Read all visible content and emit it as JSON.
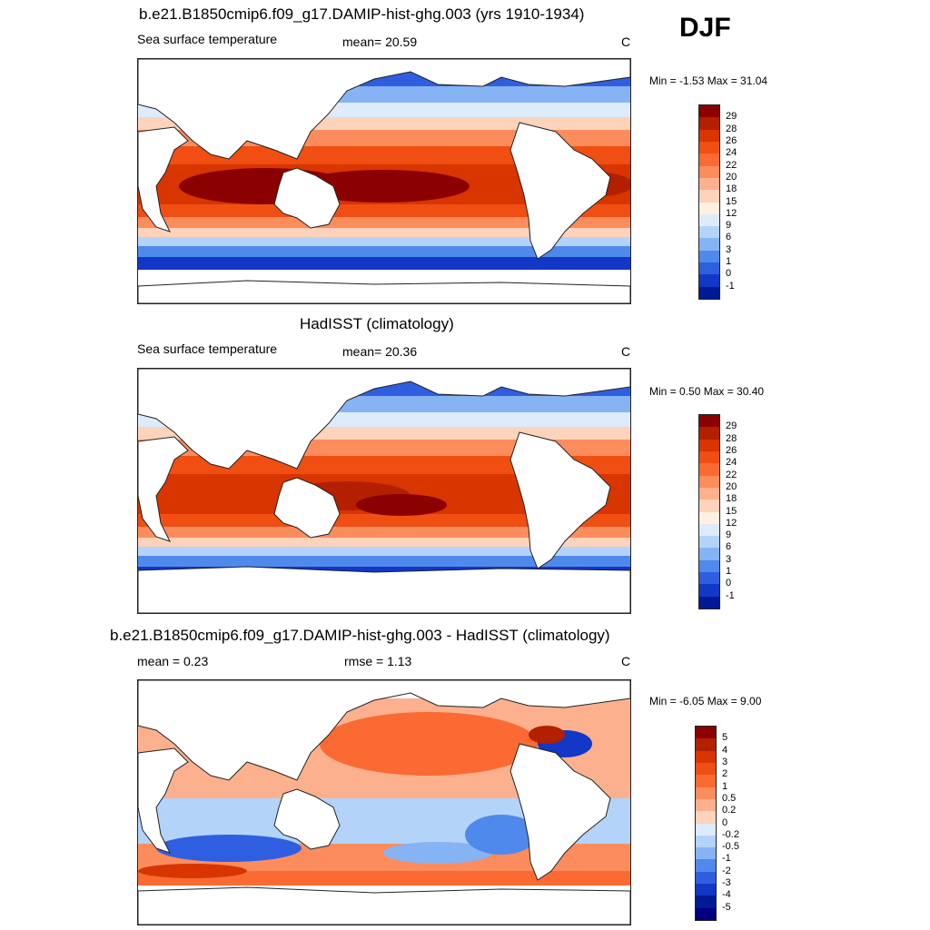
{
  "season": "DJF",
  "panels": [
    {
      "title": "b.e21.B1850cmip6.f09_g17.DAMIP-hist-ghg.003 (yrs 1910-1934)",
      "left_label": "Sea surface temperature",
      "center_label": "mean=  20.59",
      "units": "C",
      "minmax": "Min =  -1.53 Max =  31.04",
      "colorbar": {
        "labels": [
          "29",
          "28",
          "26",
          "24",
          "22",
          "20",
          "18",
          "15",
          "12",
          "9",
          "6",
          "3",
          "1",
          "0",
          "-1"
        ],
        "colors": [
          "#8b0000",
          "#b22000",
          "#d83500",
          "#f04e12",
          "#fb6a32",
          "#fd8c5d",
          "#fcb08d",
          "#fdd3bb",
          "#fff0e2",
          "#ddebfb",
          "#b4d3f8",
          "#86b3f3",
          "#5089ec",
          "#2f5fe0",
          "#1337c6",
          "#001a96"
        ]
      }
    },
    {
      "title": "HadISST (climatology)",
      "left_label": "Sea surface temperature",
      "center_label": "mean=  20.36",
      "units": "C",
      "minmax": "Min =   0.50 Max =  30.40",
      "colorbar": {
        "labels": [
          "29",
          "28",
          "26",
          "24",
          "22",
          "20",
          "18",
          "15",
          "12",
          "9",
          "6",
          "3",
          "1",
          "0",
          "-1"
        ],
        "colors": [
          "#8b0000",
          "#b22000",
          "#d83500",
          "#f04e12",
          "#fb6a32",
          "#fd8c5d",
          "#fcb08d",
          "#fdd3bb",
          "#fff0e2",
          "#ddebfb",
          "#b4d3f8",
          "#86b3f3",
          "#5089ec",
          "#2f5fe0",
          "#1337c6",
          "#001a96"
        ]
      }
    },
    {
      "title": "b.e21.B1850cmip6.f09_g17.DAMIP-hist-ghg.003 - HadISST (climatology)",
      "left_label": "mean =   0.23",
      "center_label": "rmse =   1.13",
      "units": "C",
      "minmax": "Min =  -6.05 Max =   9.00",
      "colorbar": {
        "labels": [
          "5",
          "4",
          "3",
          "2",
          "1",
          "0.5",
          "0.2",
          "0",
          "-0.2",
          "-0.5",
          "-1",
          "-2",
          "-3",
          "-4",
          "-5"
        ],
        "colors": [
          "#8b0000",
          "#b22000",
          "#d83500",
          "#f04e12",
          "#fb6a32",
          "#fd8c5d",
          "#fcb08d",
          "#fdd3bb",
          "#ddebfb",
          "#b4d3f8",
          "#86b3f3",
          "#5089ec",
          "#2f5fe0",
          "#1337c6",
          "#001a96",
          "#000080"
        ]
      }
    }
  ],
  "chart_data": [
    {
      "type": "heatmap",
      "title": "b.e21.B1850cmip6.f09_g17.DAMIP-hist-ghg.003 (yrs 1910-1934)",
      "variable": "Sea surface temperature",
      "units": "C",
      "mean": 20.59,
      "min": -1.53,
      "max": 31.04,
      "levels": [
        -1,
        0,
        1,
        3,
        6,
        9,
        12,
        15,
        18,
        20,
        22,
        24,
        26,
        28,
        29
      ],
      "map": "global, Pacific-centered"
    },
    {
      "type": "heatmap",
      "title": "HadISST (climatology)",
      "variable": "Sea surface temperature",
      "units": "C",
      "mean": 20.36,
      "min": 0.5,
      "max": 30.4,
      "levels": [
        -1,
        0,
        1,
        3,
        6,
        9,
        12,
        15,
        18,
        20,
        22,
        24,
        26,
        28,
        29
      ],
      "map": "global, Pacific-centered"
    },
    {
      "type": "heatmap",
      "title": "b.e21.B1850cmip6.f09_g17.DAMIP-hist-ghg.003 - HadISST (climatology)",
      "units": "C",
      "mean": 0.23,
      "rmse": 1.13,
      "min": -6.05,
      "max": 9.0,
      "levels": [
        -5,
        -4,
        -3,
        -2,
        -1,
        -0.5,
        -0.2,
        0,
        0.2,
        0.5,
        1,
        2,
        3,
        4,
        5
      ],
      "map": "global, Pacific-centered"
    }
  ]
}
